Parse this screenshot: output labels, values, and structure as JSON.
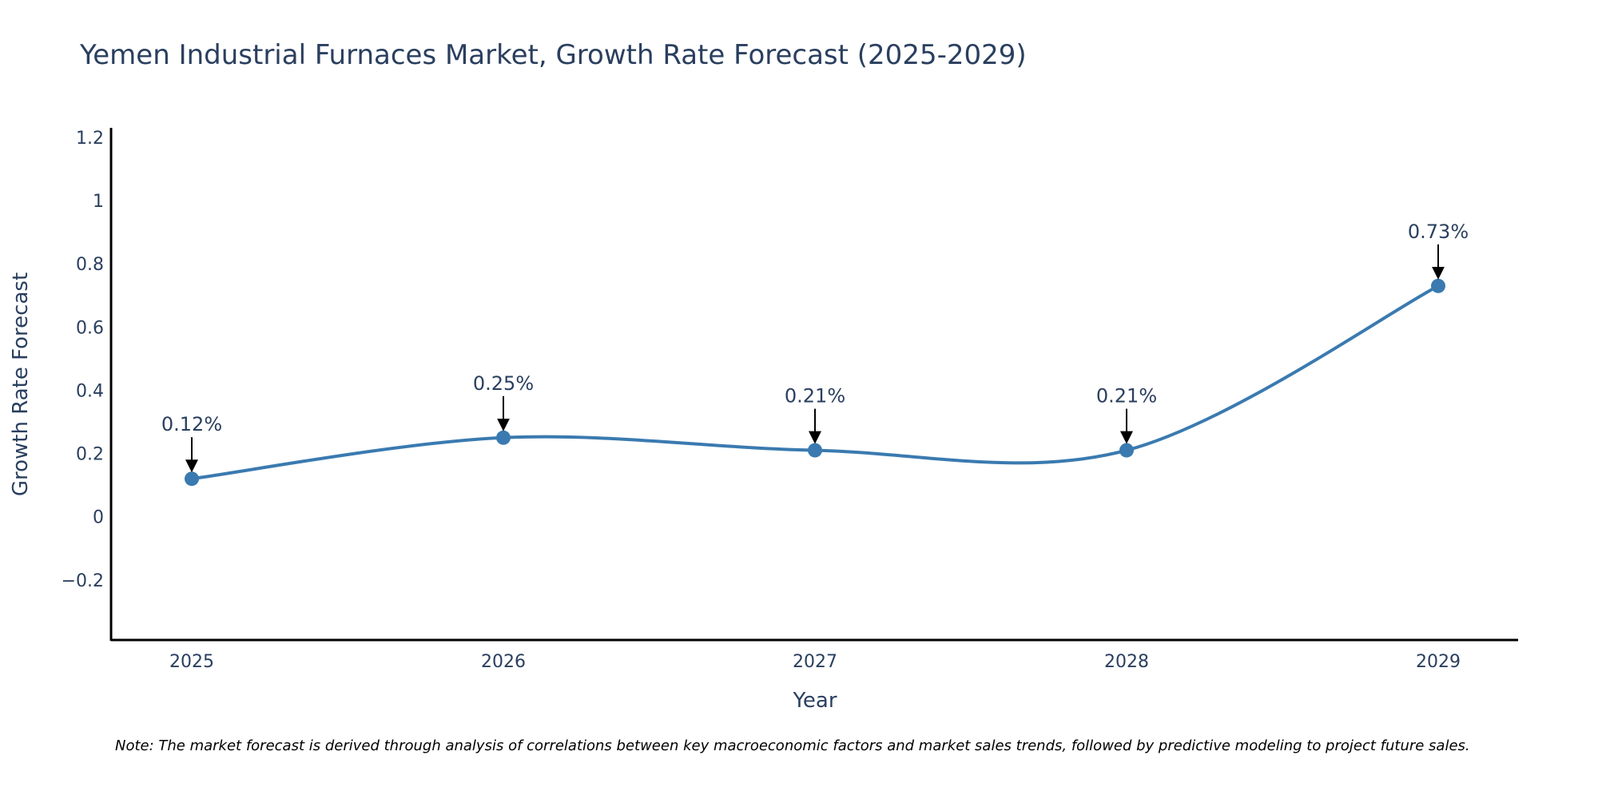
{
  "chart_data": {
    "type": "line",
    "title": "Yemen Industrial Furnaces Market, Growth Rate Forecast (2025-2029)",
    "xlabel": "Year",
    "ylabel": "Growth Rate Forecast",
    "categories": [
      "2025",
      "2026",
      "2027",
      "2028",
      "2029"
    ],
    "series": [
      {
        "name": "Growth Rate Forecast",
        "values": [
          0.12,
          0.25,
          0.21,
          0.21,
          0.73
        ],
        "labels": [
          "0.12%",
          "0.25%",
          "0.21%",
          "0.21%",
          "0.73%"
        ],
        "color": "#3a7ab0"
      }
    ],
    "ylim": [
      -0.39,
      1.23
    ],
    "yticks": [
      -0.2,
      0,
      0.2,
      0.4,
      0.6,
      0.8,
      1,
      1.2
    ],
    "ytick_labels": [
      "−0.2",
      "0",
      "0.2",
      "0.4",
      "0.6",
      "0.8",
      "1",
      "1.2"
    ],
    "grid": false,
    "smoothing": "spline",
    "annotation_style": "arrow-down"
  },
  "note": "Note: The market forecast is derived through analysis of correlations between key macroeconomic factors and market sales trends, followed by predictive modeling to project future sales."
}
